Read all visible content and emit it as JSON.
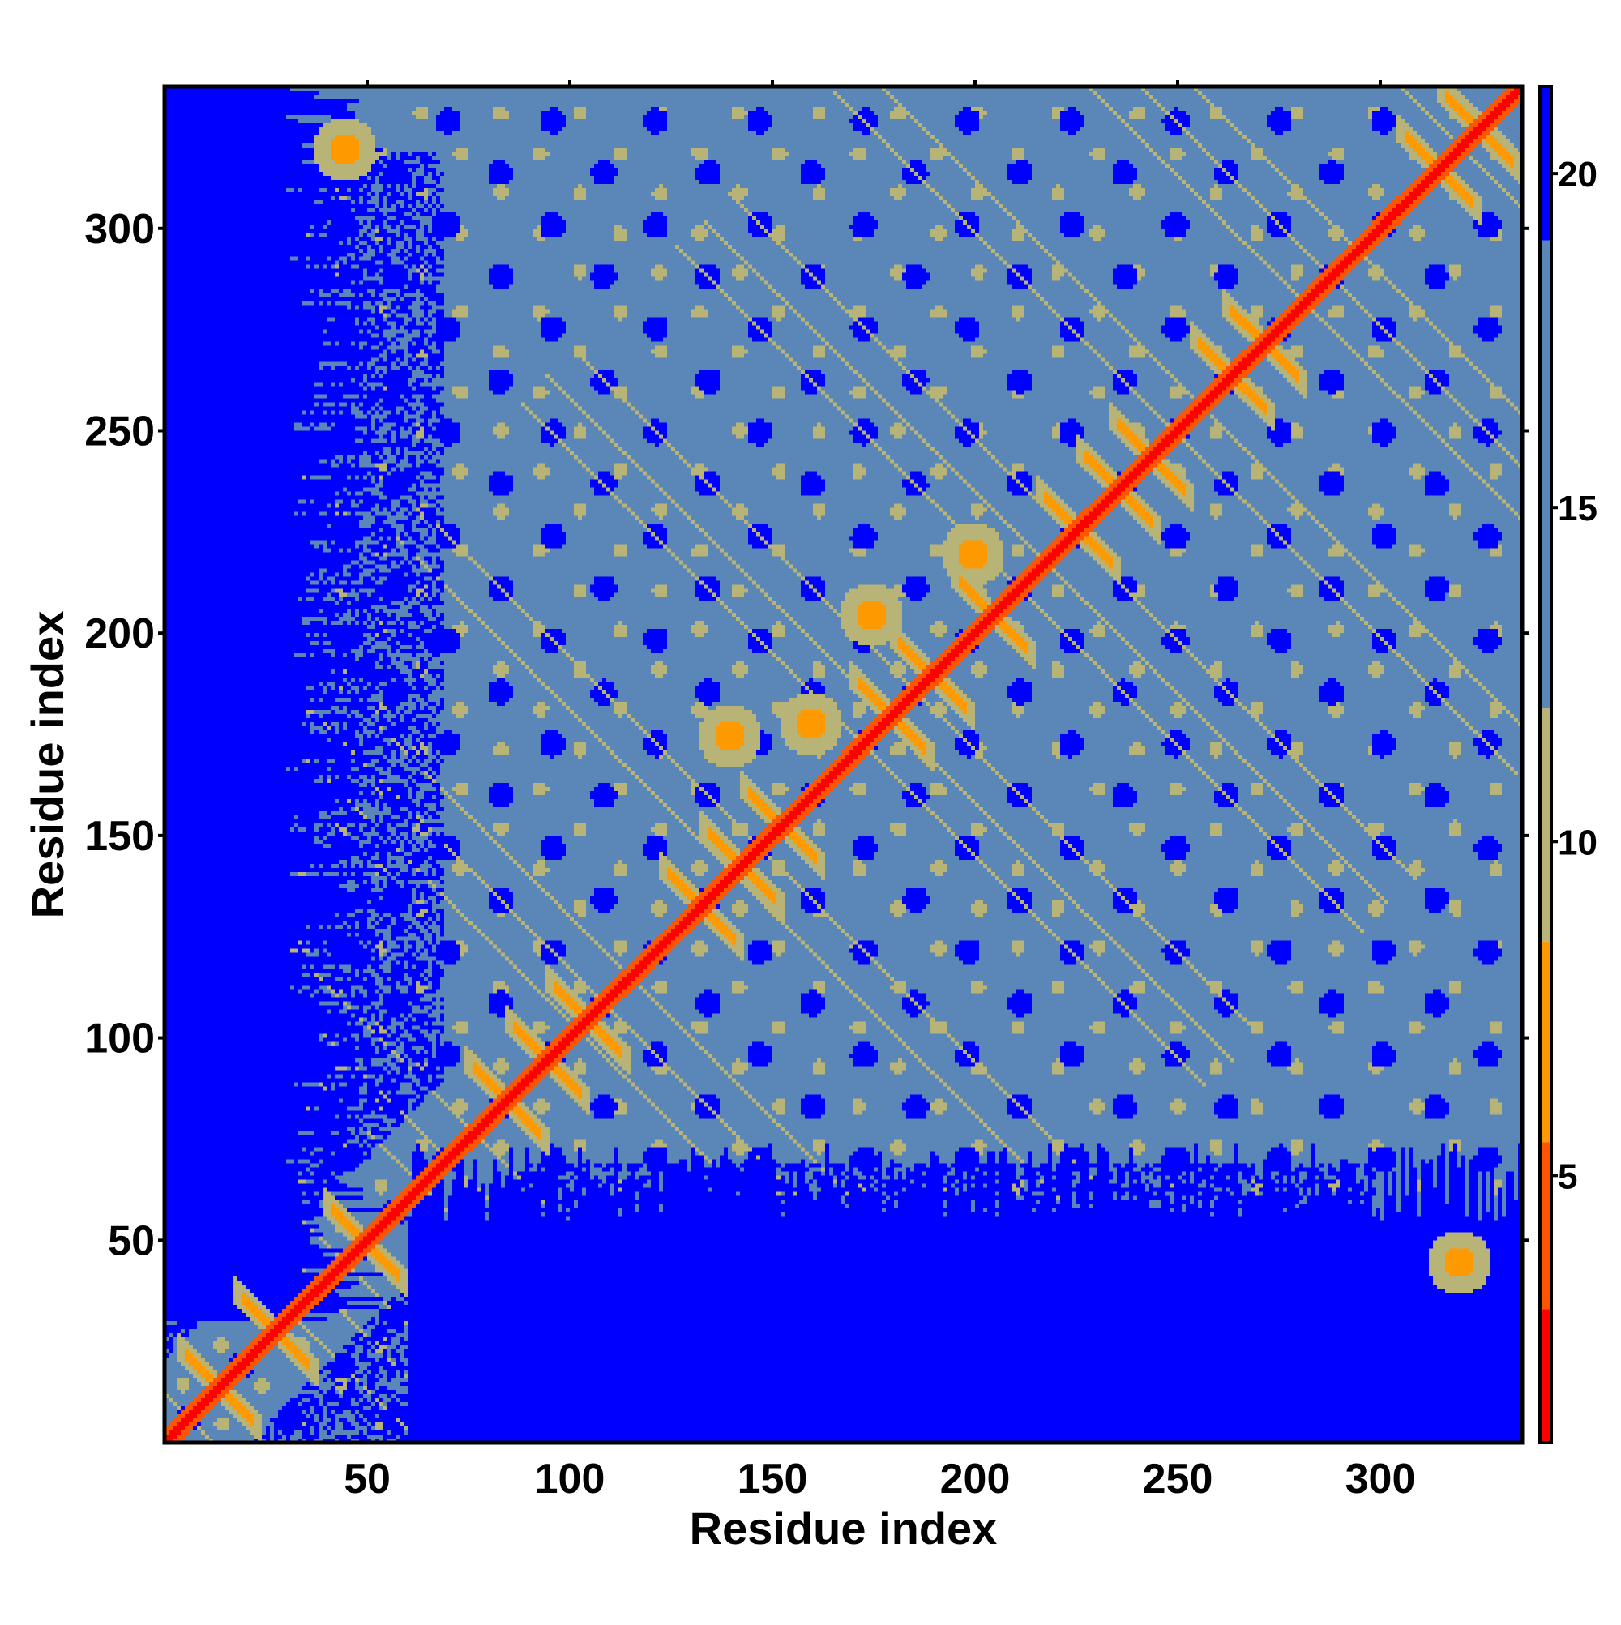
{
  "chart_data": {
    "type": "heatmap",
    "title": "",
    "xlabel": "Residue index",
    "ylabel": "Residue index",
    "xlim": [
      0,
      335
    ],
    "ylim": [
      0,
      335
    ],
    "x_ticks": [
      50,
      100,
      150,
      200,
      250,
      300
    ],
    "y_ticks": [
      50,
      100,
      150,
      200,
      250,
      300
    ],
    "x_tick_labels": [
      "50",
      "100",
      "150",
      "200",
      "250",
      "300"
    ],
    "y_tick_labels": [
      "50",
      "100",
      "150",
      "200",
      "250",
      "300"
    ],
    "matrix_size": 335,
    "value_description": "pairwise residue distance, capped at colorbar maximum",
    "colorbar": {
      "range": [
        1,
        21.3
      ],
      "ticks": [
        5,
        10,
        15,
        20
      ],
      "tick_labels": [
        "5",
        "10",
        "15",
        "20"
      ],
      "bands": [
        {
          "from": 1,
          "to": 3,
          "color": "#ff0000"
        },
        {
          "from": 3,
          "to": 5.5,
          "color": "#ff5500"
        },
        {
          "from": 5.5,
          "to": 8.5,
          "color": "#ff9900"
        },
        {
          "from": 8.5,
          "to": 12,
          "color": "#b8b478"
        },
        {
          "from": 12,
          "to": 19,
          "color": "#5a86b8"
        },
        {
          "from": 19,
          "to": 21.3,
          "color": "#0000ff"
        }
      ]
    },
    "structure": {
      "diagonal_band_value": 2,
      "beta_hairpin_centers": [
        [
          14,
          14
        ],
        [
          28,
          28
        ],
        [
          50,
          50
        ],
        [
          85,
          85
        ],
        [
          95,
          95
        ],
        [
          105,
          105
        ],
        [
          133,
          133
        ],
        [
          143,
          143
        ],
        [
          153,
          153
        ],
        [
          180,
          180
        ],
        [
          190,
          190
        ],
        [
          205,
          205
        ],
        [
          226,
          226
        ],
        [
          236,
          236
        ],
        [
          244,
          244
        ],
        [
          264,
          264
        ],
        [
          272,
          272
        ],
        [
          315,
          315
        ],
        [
          325,
          325
        ]
      ],
      "off_diagonal_contacts": [
        [
          45,
          320
        ],
        [
          320,
          45
        ],
        [
          160,
          178
        ],
        [
          140,
          175
        ],
        [
          175,
          205
        ],
        [
          200,
          220
        ]
      ],
      "far_region_value": 21
    }
  }
}
